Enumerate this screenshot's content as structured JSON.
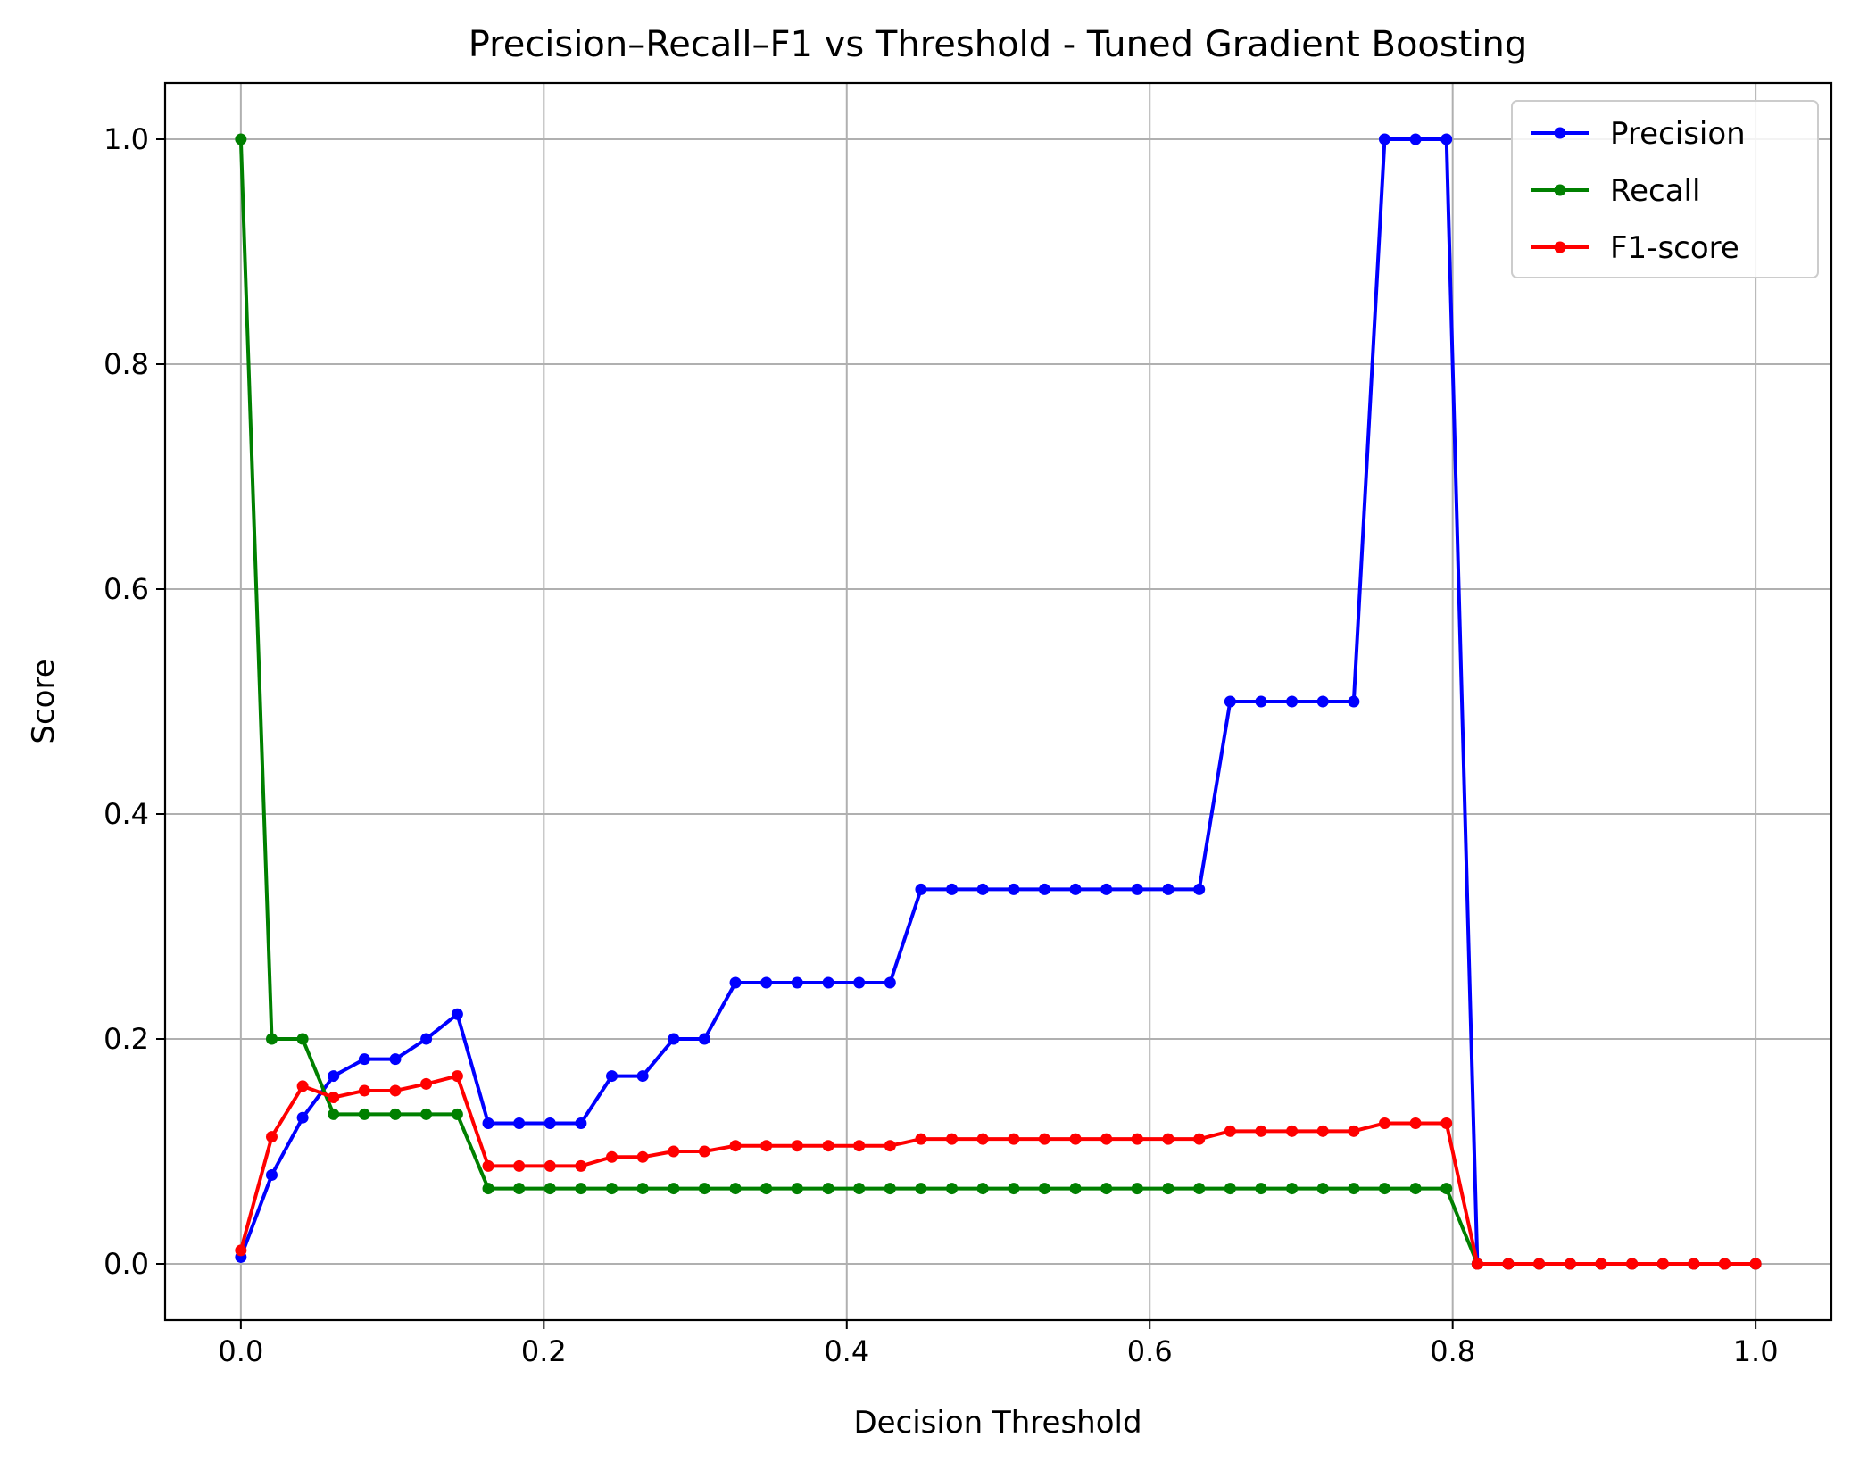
{
  "chart_data": {
    "type": "line",
    "title": "Precision–Recall–F1 vs Threshold - Tuned Gradient Boosting",
    "xlabel": "Decision Threshold",
    "ylabel": "Score",
    "xlim": [
      -0.05,
      1.05
    ],
    "ylim": [
      -0.05,
      1.05
    ],
    "xticks": [
      "0.0",
      "0.2",
      "0.4",
      "0.6",
      "0.8",
      "1.0"
    ],
    "yticks": [
      "0.0",
      "0.2",
      "0.4",
      "0.6",
      "0.8",
      "1.0"
    ],
    "grid": true,
    "legend_position": "top-right",
    "x": [
      0.0,
      0.0204,
      0.0408,
      0.0612,
      0.0816,
      0.102,
      0.1224,
      0.1429,
      0.1633,
      0.1837,
      0.2041,
      0.2245,
      0.2449,
      0.2653,
      0.2857,
      0.3061,
      0.3265,
      0.3469,
      0.3673,
      0.3878,
      0.4082,
      0.4286,
      0.449,
      0.4694,
      0.4898,
      0.5102,
      0.5306,
      0.551,
      0.5714,
      0.5918,
      0.6122,
      0.6327,
      0.6531,
      0.6735,
      0.6939,
      0.7143,
      0.7347,
      0.7551,
      0.7755,
      0.7959,
      0.8163,
      0.8367,
      0.8571,
      0.8776,
      0.898,
      0.9184,
      0.9388,
      0.9592,
      0.9796,
      1.0
    ],
    "series": [
      {
        "name": "Precision",
        "color": "#0000ff",
        "values": [
          0.006,
          0.079,
          0.13,
          0.167,
          0.182,
          0.182,
          0.2,
          0.222,
          0.125,
          0.125,
          0.125,
          0.125,
          0.167,
          0.167,
          0.2,
          0.2,
          0.25,
          0.25,
          0.25,
          0.25,
          0.25,
          0.25,
          0.333,
          0.333,
          0.333,
          0.333,
          0.333,
          0.333,
          0.333,
          0.333,
          0.333,
          0.333,
          0.5,
          0.5,
          0.5,
          0.5,
          0.5,
          1.0,
          1.0,
          1.0,
          0.0,
          0.0,
          0.0,
          0.0,
          0.0,
          0.0,
          0.0,
          0.0,
          0.0,
          0.0
        ]
      },
      {
        "name": "Recall",
        "color": "#008000",
        "values": [
          1.0,
          0.2,
          0.2,
          0.133,
          0.133,
          0.133,
          0.133,
          0.133,
          0.067,
          0.067,
          0.067,
          0.067,
          0.067,
          0.067,
          0.067,
          0.067,
          0.067,
          0.067,
          0.067,
          0.067,
          0.067,
          0.067,
          0.067,
          0.067,
          0.067,
          0.067,
          0.067,
          0.067,
          0.067,
          0.067,
          0.067,
          0.067,
          0.067,
          0.067,
          0.067,
          0.067,
          0.067,
          0.067,
          0.067,
          0.067,
          0.0,
          0.0,
          0.0,
          0.0,
          0.0,
          0.0,
          0.0,
          0.0,
          0.0,
          0.0
        ]
      },
      {
        "name": "F1-score",
        "color": "#ff0000",
        "values": [
          0.012,
          0.113,
          0.158,
          0.148,
          0.154,
          0.154,
          0.16,
          0.167,
          0.087,
          0.087,
          0.087,
          0.087,
          0.095,
          0.095,
          0.1,
          0.1,
          0.105,
          0.105,
          0.105,
          0.105,
          0.105,
          0.105,
          0.111,
          0.111,
          0.111,
          0.111,
          0.111,
          0.111,
          0.111,
          0.111,
          0.111,
          0.111,
          0.118,
          0.118,
          0.118,
          0.118,
          0.118,
          0.125,
          0.125,
          0.125,
          0.0,
          0.0,
          0.0,
          0.0,
          0.0,
          0.0,
          0.0,
          0.0,
          0.0,
          0.0
        ]
      }
    ]
  }
}
